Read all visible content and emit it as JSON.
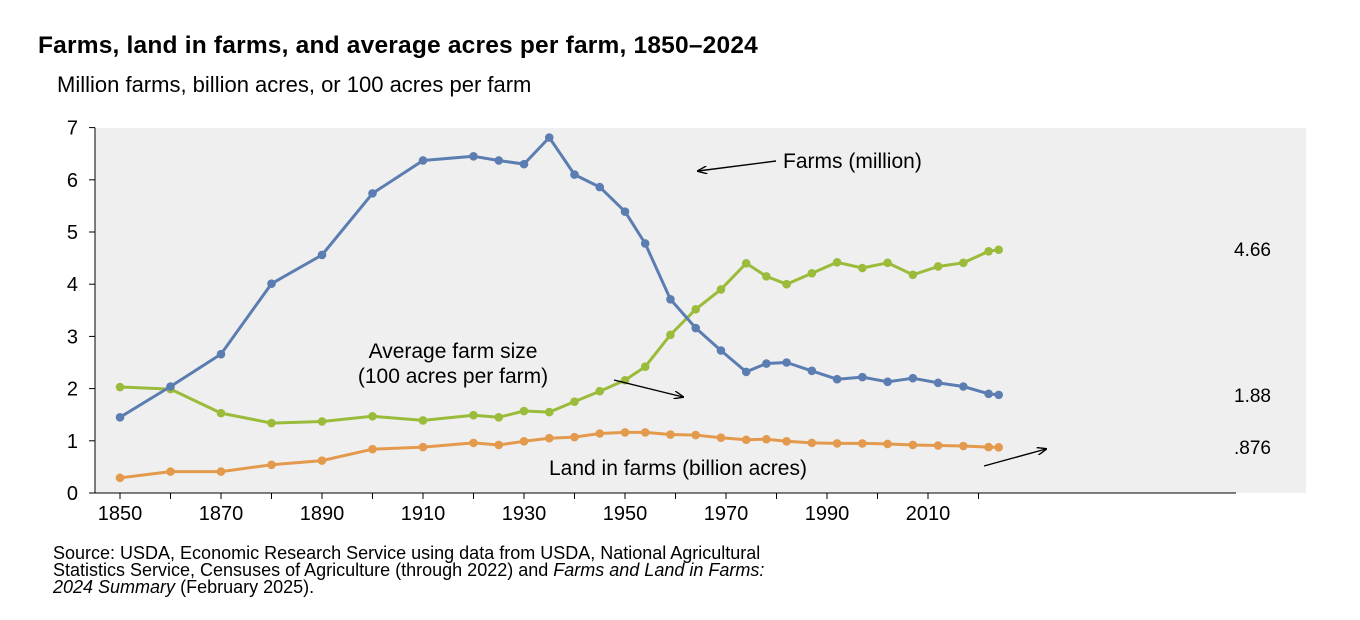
{
  "title": "Farms, land in farms, and average acres per farm, 1850–2024",
  "subtitle": "Million farms, billion acres, or 100 acres per farm",
  "source": {
    "part1": "Source: USDA, Economic Research Service using data from USDA, National Agricultural",
    "part2": "Statistics Service, Censuses of Agriculture (through 2022) and",
    "italic1": "Farms and Land in Farms:",
    "italic2": "2024 Summary",
    "part3": "(February 2025)."
  },
  "chart_data": {
    "type": "line",
    "xlim": [
      1847,
      2030
    ],
    "ylim": [
      0,
      7
    ],
    "x_ticks": [
      1850,
      1870,
      1890,
      1910,
      1930,
      1950,
      1970,
      1990,
      2010
    ],
    "y_ticks": [
      0,
      1,
      2,
      3,
      4,
      5,
      6,
      7
    ],
    "grid": false,
    "plot_background": "#efefef",
    "series": [
      {
        "name": "Farms (million)",
        "color": "#5b7db1",
        "x": [
          1850,
          1860,
          1870,
          1880,
          1890,
          1900,
          1910,
          1920,
          1925,
          1930,
          1935,
          1940,
          1945,
          1950,
          1954,
          1959,
          1964,
          1969,
          1974,
          1978,
          1982,
          1987,
          1992,
          1997,
          2002,
          2007,
          2012,
          2017,
          2022,
          2024
        ],
        "y": [
          1.45,
          2.04,
          2.66,
          4.01,
          4.56,
          5.74,
          6.37,
          6.45,
          6.37,
          6.3,
          6.81,
          6.1,
          5.86,
          5.39,
          4.78,
          3.71,
          3.16,
          2.73,
          2.32,
          2.48,
          2.5,
          2.34,
          2.18,
          2.22,
          2.13,
          2.2,
          2.11,
          2.04,
          1.9,
          1.88
        ]
      },
      {
        "name": "Average farm size (100 acres per farm)",
        "color": "#9bbb3b",
        "x": [
          1850,
          1860,
          1870,
          1880,
          1890,
          1900,
          1910,
          1920,
          1925,
          1930,
          1935,
          1940,
          1945,
          1950,
          1954,
          1959,
          1964,
          1969,
          1974,
          1978,
          1982,
          1987,
          1992,
          1997,
          2002,
          2007,
          2012,
          2017,
          2022,
          2024
        ],
        "y": [
          2.03,
          1.99,
          1.53,
          1.34,
          1.37,
          1.47,
          1.39,
          1.49,
          1.45,
          1.57,
          1.55,
          1.75,
          1.95,
          2.16,
          2.42,
          3.03,
          3.52,
          3.9,
          4.4,
          4.15,
          4.0,
          4.21,
          4.42,
          4.31,
          4.41,
          4.18,
          4.34,
          4.41,
          4.63,
          4.66
        ]
      },
      {
        "name": "Land in farms (billion acres)",
        "color": "#e39a4d",
        "x": [
          1850,
          1860,
          1870,
          1880,
          1890,
          1900,
          1910,
          1920,
          1925,
          1930,
          1935,
          1940,
          1945,
          1950,
          1954,
          1959,
          1964,
          1969,
          1974,
          1978,
          1982,
          1987,
          1992,
          1997,
          2002,
          2007,
          2012,
          2017,
          2022,
          2024
        ],
        "y": [
          0.29,
          0.41,
          0.41,
          0.54,
          0.62,
          0.84,
          0.88,
          0.96,
          0.92,
          0.99,
          1.05,
          1.07,
          1.14,
          1.16,
          1.16,
          1.12,
          1.11,
          1.06,
          1.02,
          1.03,
          0.99,
          0.96,
          0.95,
          0.95,
          0.94,
          0.92,
          0.91,
          0.9,
          0.88,
          0.876
        ]
      }
    ],
    "annotations": [
      {
        "text": "Farms (million)",
        "series": 0
      },
      {
        "lines": [
          "Average farm size",
          "(100 acres per farm)"
        ],
        "series": 1
      },
      {
        "text": "Land in farms (billion acres)",
        "series": 2
      }
    ],
    "end_labels": [
      "1.88",
      "4.66",
      ".876"
    ]
  }
}
